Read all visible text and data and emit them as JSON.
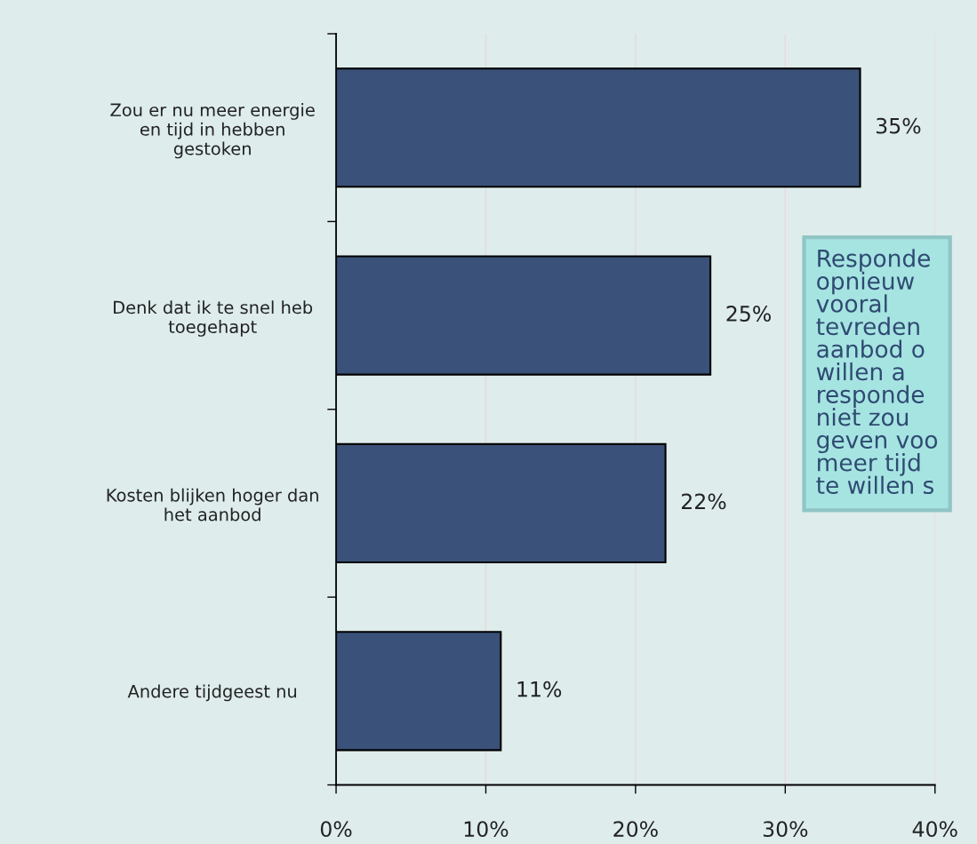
{
  "chart_data": {
    "type": "bar",
    "orientation": "horizontal",
    "categories": [
      "Zou er nu meer energie\nen tijd in hebben\ngestoken",
      "Denk dat ik te snel heb\ntoegehapt",
      "Kosten blijken hoger dan\nhet aanbod",
      "Andere tijdgeest nu"
    ],
    "values": [
      35,
      25,
      22,
      11
    ],
    "color": "#3a5279",
    "value_labels": [
      "35%",
      "25%",
      "22%",
      "11%"
    ],
    "xlim": [
      0,
      40
    ],
    "xticks": [
      {
        "value": 0,
        "label": "0%"
      },
      {
        "value": 10,
        "label": "10%"
      },
      {
        "value": 20,
        "label": "20%"
      },
      {
        "value": 30,
        "label": "30%"
      },
      {
        "value": 40,
        "label": "40%"
      }
    ],
    "grid": "x",
    "annotations": [
      "Responde\nopnieuw\nvooral\ntevreden\naanbod o\nwillen a\nresponde\nniet zou\ngeven voo\nmeer tijd\nte willen s"
    ]
  }
}
